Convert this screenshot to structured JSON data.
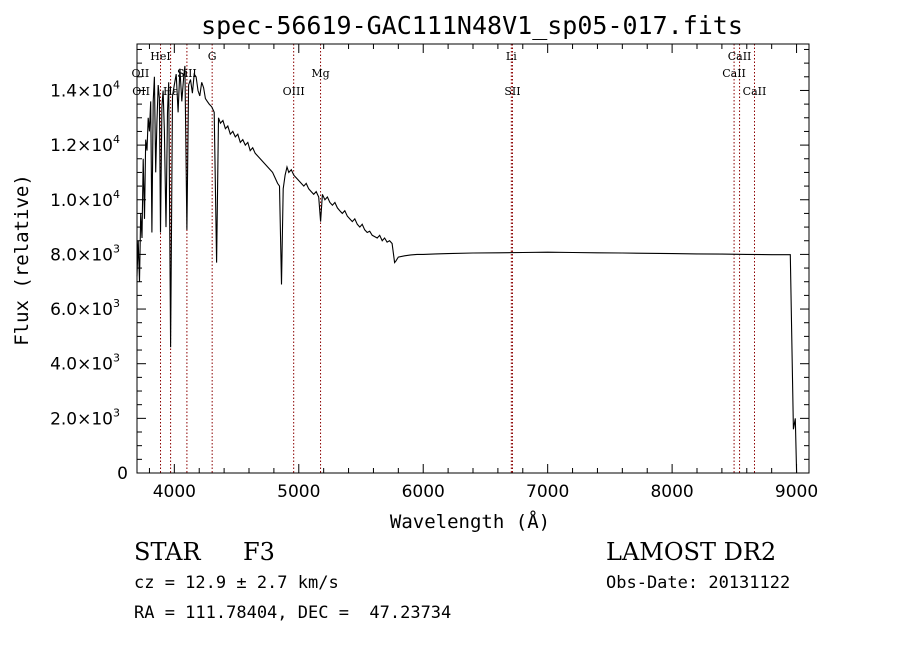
{
  "chart_data": {
    "type": "line",
    "title": "spec-56619-GAC111N48V1_sp05-017.fits",
    "xlabel": "Wavelength (Å)",
    "ylabel": "Flux (relative)",
    "xlim": [
      3700,
      9100
    ],
    "ylim": [
      0,
      15700
    ],
    "grid": false,
    "x_ticks": [
      4000,
      5000,
      6000,
      7000,
      8000,
      9000
    ],
    "y_ticks": [
      {
        "value": 0,
        "mantissa": "0",
        "exponent": ""
      },
      {
        "value": 2000,
        "mantissa": "2.0×10",
        "exponent": "3"
      },
      {
        "value": 4000,
        "mantissa": "4.0×10",
        "exponent": "3"
      },
      {
        "value": 6000,
        "mantissa": "6.0×10",
        "exponent": "3"
      },
      {
        "value": 8000,
        "mantissa": "8.0×10",
        "exponent": "3"
      },
      {
        "value": 10000,
        "mantissa": "1.0×10",
        "exponent": "4"
      },
      {
        "value": 12000,
        "mantissa": "1.2×10",
        "exponent": "4"
      },
      {
        "value": 14000,
        "mantissa": "1.4×10",
        "exponent": "4"
      }
    ],
    "series": [
      {
        "color": "#000000",
        "x": [
          3700,
          3710,
          3720,
          3730,
          3740,
          3750,
          3760,
          3770,
          3780,
          3790,
          3800,
          3810,
          3820,
          3830,
          3840,
          3850,
          3860,
          3870,
          3880,
          3889,
          3900,
          3910,
          3920,
          3933,
          3945,
          3955,
          3970,
          3985,
          4000,
          4015,
          4030,
          4045,
          4060,
          4075,
          4085,
          4101,
          4115,
          4130,
          4145,
          4160,
          4175,
          4190,
          4205,
          4220,
          4235,
          4250,
          4265,
          4280,
          4300,
          4320,
          4340,
          4355,
          4370,
          4390,
          4410,
          4430,
          4450,
          4470,
          4490,
          4510,
          4530,
          4550,
          4570,
          4590,
          4610,
          4630,
          4650,
          4670,
          4690,
          4710,
          4730,
          4750,
          4770,
          4790,
          4810,
          4830,
          4845,
          4861,
          4875,
          4890,
          4905,
          4920,
          4940,
          4960,
          4980,
          5000,
          5020,
          5040,
          5060,
          5080,
          5100,
          5120,
          5140,
          5160,
          5175,
          5190,
          5210,
          5230,
          5250,
          5270,
          5290,
          5310,
          5330,
          5350,
          5370,
          5390,
          5410,
          5430,
          5450,
          5470,
          5490,
          5510,
          5530,
          5550,
          5570,
          5590,
          5610,
          5630,
          5650,
          5670,
          5690,
          5710,
          5730,
          5750,
          5770,
          5780,
          5800,
          5850,
          5900,
          5950,
          6000,
          6100,
          6200,
          6400,
          6600,
          6800,
          7000,
          7200,
          7400,
          7600,
          7800,
          8000,
          8200,
          8400,
          8600,
          8800,
          8950,
          8975,
          8990,
          9000
        ],
        "y": [
          7200,
          8500,
          7000,
          9500,
          8600,
          11500,
          9300,
          12200,
          11800,
          13000,
          12500,
          13600,
          8800,
          13600,
          14500,
          11000,
          12800,
          14200,
          13700,
          8800,
          13400,
          14000,
          12500,
          9000,
          13200,
          14300,
          4600,
          13800,
          14200,
          14600,
          13200,
          14800,
          13600,
          14500,
          14900,
          8900,
          14200,
          14400,
          13900,
          14600,
          14500,
          14000,
          13800,
          14300,
          14100,
          13700,
          13600,
          13500,
          13400,
          13200,
          7700,
          13000,
          12800,
          12900,
          12600,
          12700,
          12400,
          12500,
          12300,
          12400,
          12100,
          12200,
          12000,
          12100,
          11800,
          11900,
          11700,
          11600,
          11500,
          11400,
          11300,
          11200,
          11100,
          11000,
          10800,
          10600,
          10500,
          6900,
          10400,
          10900,
          11200,
          11000,
          11100,
          10900,
          10800,
          10700,
          10600,
          10500,
          10600,
          10400,
          10300,
          10200,
          10300,
          10100,
          9200,
          10200,
          10000,
          10100,
          9900,
          9800,
          9900,
          9700,
          9600,
          9500,
          9600,
          9400,
          9300,
          9200,
          9300,
          9100,
          9000,
          9100,
          8900,
          8800,
          8850,
          8700,
          8650,
          8600,
          8700,
          8500,
          8600,
          8450,
          8500,
          8400,
          7700,
          7750,
          7900,
          7950,
          7980,
          8000,
          8000,
          8020,
          8030,
          8050,
          8060,
          8070,
          8080,
          8070,
          8060,
          8050,
          8040,
          8030,
          8020,
          8010,
          8000,
          7990,
          7990,
          1600,
          2000,
          0
        ]
      }
    ],
    "line_markers": [
      {
        "wavelength": 3889,
        "color": "#8b0000"
      },
      {
        "wavelength": 3970,
        "color": "#8b0000"
      },
      {
        "wavelength": 4101,
        "color": "#8b0000"
      },
      {
        "wavelength": 4304,
        "color": "#8b0000"
      },
      {
        "wavelength": 4959,
        "color": "#8b0000"
      },
      {
        "wavelength": 5175,
        "color": "#8b0000"
      },
      {
        "wavelength": 6708,
        "color": "#8b0000"
      },
      {
        "wavelength": 6717,
        "color": "#8b0000"
      },
      {
        "wavelength": 8498,
        "color": "#8b0000"
      },
      {
        "wavelength": 8542,
        "color": "#8b0000"
      },
      {
        "wavelength": 8662,
        "color": "#8b0000"
      }
    ],
    "line_labels": [
      {
        "text": "HeI",
        "wavelength": 3889,
        "row": 0
      },
      {
        "text": "SiII",
        "wavelength": 4101,
        "row": 1
      },
      {
        "text": "G",
        "wavelength": 4304,
        "row": 0
      },
      {
        "text": "OII",
        "wavelength": 3727,
        "row": 1
      },
      {
        "text": "OII",
        "wavelength": 3733,
        "row": 2
      },
      {
        "text": "Hε",
        "wavelength": 3970,
        "row": 2
      },
      {
        "text": "Mg",
        "wavelength": 5175,
        "row": 1
      },
      {
        "text": "OIII",
        "wavelength": 4959,
        "row": 2
      },
      {
        "text": "Li",
        "wavelength": 6708,
        "row": 0
      },
      {
        "text": "SII",
        "wavelength": 6717,
        "row": 2
      },
      {
        "text": "CaII",
        "wavelength": 8542,
        "row": 0
      },
      {
        "text": "CaII",
        "wavelength": 8498,
        "row": 1
      },
      {
        "text": "CaII",
        "wavelength": 8662,
        "row": 2
      }
    ]
  },
  "info": {
    "object_class": "STAR",
    "subclass": "F3",
    "survey": "LAMOST DR2",
    "redshift": "cz = 12.9 ± 2.7 km/s",
    "obs_date": "Obs-Date: 20131122",
    "coords": "RA = 111.78404, DEC =  47.23734"
  }
}
